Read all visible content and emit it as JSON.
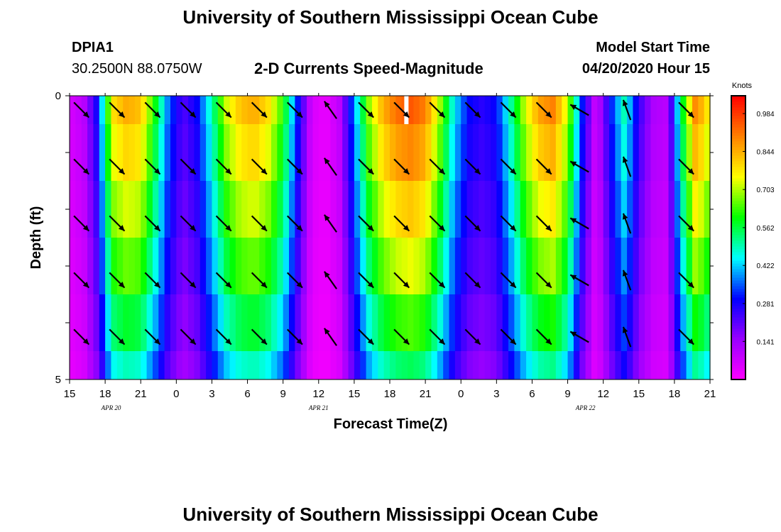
{
  "page": {
    "title_top": "University of Southern Mississippi Ocean Cube",
    "title_bottom": "University of Southern Mississippi Ocean Cube"
  },
  "header": {
    "station_id": "DPIA1",
    "station_coords": "30.2500N 88.0750W",
    "model_label": "Model Start Time",
    "model_time": "04/20/2020 Hour 15"
  },
  "chart_data": {
    "type": "heatmap",
    "title": "2-D Currents Speed-Magnitude",
    "xlabel": "Forecast Time(Z)",
    "ylabel": "Depth (ft)",
    "colorbar_label": "Knots",
    "colorbar_ticks": [
      "0.984",
      "0.844",
      "0.703",
      "0.562",
      "0.422",
      "0.281",
      "0.141"
    ],
    "colorbar_range": [
      0.0,
      1.05
    ],
    "colors": [
      "#ff00ff",
      "#9900ff",
      "#0000ff",
      "#00ffff",
      "#00ff00",
      "#ffff00",
      "#ff8000",
      "#ff0000"
    ],
    "x_range_hours": [
      0,
      54
    ],
    "x_ticks": [
      {
        "h": 0,
        "label": "15"
      },
      {
        "h": 3,
        "label": "18"
      },
      {
        "h": 6,
        "label": "21"
      },
      {
        "h": 9,
        "label": "0"
      },
      {
        "h": 12,
        "label": "3"
      },
      {
        "h": 15,
        "label": "6"
      },
      {
        "h": 18,
        "label": "9"
      },
      {
        "h": 21,
        "label": "12"
      },
      {
        "h": 24,
        "label": "15"
      },
      {
        "h": 27,
        "label": "18"
      },
      {
        "h": 30,
        "label": "21"
      },
      {
        "h": 33,
        "label": "0"
      },
      {
        "h": 36,
        "label": "3"
      },
      {
        "h": 39,
        "label": "6"
      },
      {
        "h": 42,
        "label": "9"
      },
      {
        "h": 45,
        "label": "12"
      },
      {
        "h": 48,
        "label": "15"
      },
      {
        "h": 51,
        "label": "18"
      },
      {
        "h": 54,
        "label": "21"
      }
    ],
    "date_labels": [
      {
        "h": 3.5,
        "label": "APR 20"
      },
      {
        "h": 21,
        "label": "APR 21"
      },
      {
        "h": 43.5,
        "label": "APR 22"
      }
    ],
    "y_range": [
      0,
      5
    ],
    "y_ticks": [
      {
        "v": 0,
        "label": "0"
      },
      {
        "v": 5,
        "label": "5"
      }
    ],
    "depth_levels": [
      0.25,
      1.25,
      2.25,
      3.25,
      4.25
    ],
    "speed_profile": [
      [
        0,
        0.06
      ],
      [
        1.2,
        0.1
      ],
      [
        2.4,
        0.3
      ],
      [
        3.6,
        0.78
      ],
      [
        4.8,
        0.85
      ],
      [
        6.0,
        0.82
      ],
      [
        7.2,
        0.6
      ],
      [
        8.4,
        0.35
      ],
      [
        9.6,
        0.22
      ],
      [
        10.8,
        0.3
      ],
      [
        12.0,
        0.5
      ],
      [
        13.2,
        0.72
      ],
      [
        14.4,
        0.82
      ],
      [
        15.6,
        0.85
      ],
      [
        16.8,
        0.78
      ],
      [
        18.0,
        0.62
      ],
      [
        19.2,
        0.32
      ],
      [
        20.4,
        0.06
      ],
      [
        21.6,
        0.03
      ],
      [
        22.8,
        0.1
      ],
      [
        24.0,
        0.38
      ],
      [
        25.2,
        0.68
      ],
      [
        26.4,
        0.84
      ],
      [
        27.6,
        0.92
      ],
      [
        28.8,
        0.95
      ],
      [
        30.0,
        0.9
      ],
      [
        31.2,
        0.7
      ],
      [
        32.4,
        0.45
      ],
      [
        33.6,
        0.3
      ],
      [
        34.8,
        0.26
      ],
      [
        36.0,
        0.3
      ],
      [
        37.2,
        0.5
      ],
      [
        38.4,
        0.72
      ],
      [
        39.6,
        0.86
      ],
      [
        40.8,
        0.9
      ],
      [
        42.0,
        0.72
      ],
      [
        43.2,
        0.32
      ],
      [
        44.4,
        0.06
      ],
      [
        45.6,
        0.3
      ],
      [
        46.8,
        0.5
      ],
      [
        48.0,
        0.25
      ],
      [
        49.2,
        0.12
      ],
      [
        50.4,
        0.1
      ],
      [
        51.6,
        0.55
      ],
      [
        52.8,
        0.9
      ],
      [
        54.0,
        0.75
      ]
    ],
    "depth_scale": [
      1.0,
      0.94,
      0.86,
      0.78,
      0.68,
      0.58
    ],
    "gap_marker": {
      "h": 28.4,
      "depth_from": 0,
      "depth_to": 0.5
    },
    "arrows": {
      "hours": [
        1,
        4,
        7,
        10,
        13,
        16,
        19,
        22,
        25,
        28,
        31,
        34,
        37,
        40,
        43,
        47,
        52
      ],
      "angles_deg": [
        -45,
        -45,
        -45,
        -45,
        -45,
        -45,
        -45,
        125,
        -45,
        -45,
        -45,
        -45,
        -45,
        -45,
        150,
        110,
        -45
      ]
    }
  }
}
